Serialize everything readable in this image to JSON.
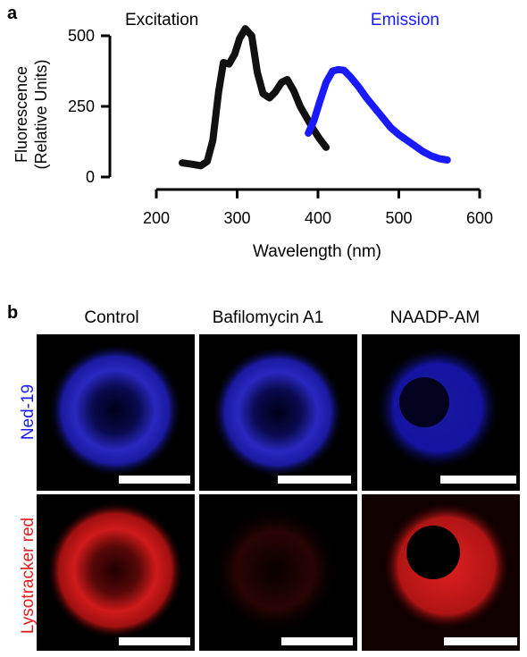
{
  "panel_a": {
    "letter": "a",
    "chart_data": {
      "type": "line",
      "xlabel": "Wavelength (nm)",
      "ylabel_line1": "Fluorescence",
      "ylabel_line2": "(Relative Units)",
      "xlim": [
        200,
        600
      ],
      "ylim": [
        0,
        500
      ],
      "xticks": [
        200,
        300,
        400,
        500,
        600
      ],
      "yticks": [
        0,
        250,
        500
      ],
      "grid": false,
      "series": [
        {
          "name": "Excitation",
          "color": "#111111",
          "x": [
            232,
            245,
            255,
            263,
            270,
            277,
            283,
            290,
            297,
            303,
            310,
            318,
            325,
            332,
            340,
            347,
            355,
            362,
            370,
            378,
            386,
            394,
            402,
            410
          ],
          "y": [
            50,
            45,
            40,
            55,
            130,
            300,
            405,
            400,
            435,
            490,
            525,
            500,
            370,
            295,
            280,
            300,
            335,
            345,
            305,
            250,
            210,
            170,
            135,
            105
          ]
        },
        {
          "name": "Emission",
          "color": "#1a1aff",
          "x": [
            388,
            395,
            402,
            410,
            418,
            425,
            432,
            440,
            450,
            460,
            470,
            480,
            490,
            500,
            510,
            520,
            530,
            540,
            550,
            560
          ],
          "y": [
            155,
            200,
            265,
            335,
            375,
            380,
            378,
            355,
            320,
            280,
            245,
            210,
            175,
            150,
            130,
            110,
            90,
            75,
            65,
            60
          ]
        }
      ]
    }
  },
  "panel_b": {
    "letter": "b",
    "columns": [
      "Control",
      "Bafilomycin A1",
      "NAADP-AM"
    ],
    "rows": [
      {
        "label": "Ned-19",
        "color": "#1a1aff"
      },
      {
        "label": "Lysotracker red",
        "color": "#e02020"
      }
    ]
  }
}
